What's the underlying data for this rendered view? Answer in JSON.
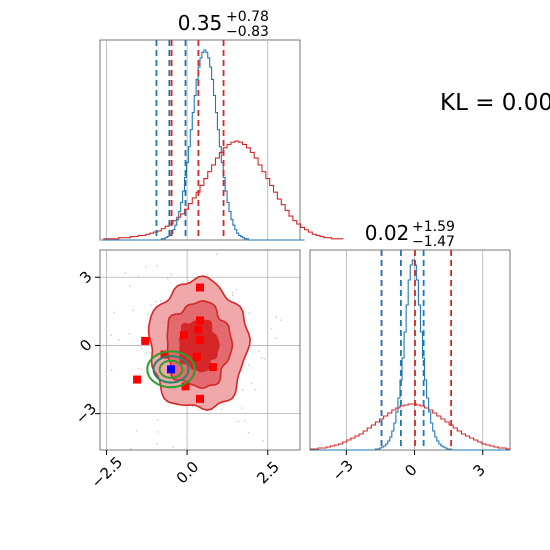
{
  "colors": {
    "posterior": "#d62728",
    "prior": "#1f77b4",
    "ellipse": "#2ca02c",
    "marker_red": "#ff0000",
    "marker_blue": "#0000ff",
    "grid": "#b0b0b0"
  },
  "kl_text": "KL = 0.00",
  "chart_data": [
    {
      "type": "histogram",
      "panel": "param1-marginal",
      "title": {
        "value": "0.35",
        "plus": "+0.78",
        "minus": "−0.83"
      },
      "xlim": [
        -2.7,
        3.5
      ],
      "posterior_quantiles": [
        -0.48,
        0.35,
        1.13
      ],
      "prior_quantiles": [
        -0.95,
        -0.55,
        -0.05
      ],
      "series": [
        {
          "color": "posterior",
          "bin_start": -2.6,
          "bin_width": 0.12,
          "counts": [
            1,
            1,
            1,
            1,
            2,
            2,
            2,
            3,
            3,
            4,
            4,
            5,
            6,
            7,
            8,
            10,
            12,
            14,
            17,
            20,
            23,
            27,
            32,
            37,
            42,
            48,
            54,
            60,
            66,
            72,
            77,
            81,
            84,
            86,
            87,
            86,
            84,
            81,
            77,
            72,
            66,
            60,
            54,
            48,
            42,
            36,
            31,
            26,
            21,
            17,
            14,
            11,
            9,
            7,
            5,
            4,
            3,
            2,
            2,
            1,
            1,
            1
          ]
        },
        {
          "color": "prior",
          "bin_start": -2.6,
          "bin_width": 0.06,
          "counts": [
            0,
            0,
            0,
            0,
            0,
            0,
            0,
            0,
            0,
            0,
            0,
            0,
            0,
            0,
            0,
            0,
            0,
            0,
            0,
            0,
            0,
            0,
            0,
            0,
            0,
            0,
            0,
            0,
            0,
            0,
            1,
            1,
            2,
            3,
            4,
            6,
            9,
            13,
            18,
            25,
            33,
            43,
            55,
            68,
            82,
            97,
            112,
            127,
            141,
            152,
            160,
            165,
            167,
            165,
            160,
            152,
            141,
            127,
            112,
            97,
            82,
            68,
            55,
            43,
            33,
            25,
            18,
            13,
            9,
            6,
            4,
            3,
            2,
            1,
            1,
            0,
            0,
            0,
            0,
            0,
            0,
            0,
            0,
            0,
            0,
            0,
            0,
            0,
            0,
            0,
            0,
            0,
            0,
            0,
            0,
            0,
            0,
            0,
            0,
            0,
            0,
            0,
            0,
            0
          ]
        }
      ]
    },
    {
      "type": "contour",
      "panel": "joint",
      "xlim": [
        -2.7,
        3.5
      ],
      "ylim": [
        -4.6,
        4.2
      ],
      "xticks": [
        "−2.5",
        "0.0",
        "2.5"
      ],
      "yticks": [
        "3",
        "0",
        "−3"
      ],
      "posterior_center": [
        0.35,
        0.02
      ],
      "posterior_sigma": [
        0.8,
        1.5
      ],
      "prior_center": [
        -0.5,
        -1.05
      ],
      "prior_sigma": [
        0.35,
        0.3
      ],
      "true_point": [
        -0.5,
        -1.05
      ],
      "markers": [
        [
          0.4,
          2.55
        ],
        [
          -1.3,
          0.2
        ],
        [
          -0.1,
          0.45
        ],
        [
          0.4,
          1.1
        ],
        [
          0.35,
          0.7
        ],
        [
          0.4,
          0.25
        ],
        [
          -0.7,
          -0.4
        ],
        [
          0.3,
          -0.5
        ],
        [
          0.8,
          -0.95
        ],
        [
          -1.55,
          -1.5
        ],
        [
          -0.05,
          -1.8
        ],
        [
          0.4,
          -2.35
        ]
      ]
    },
    {
      "type": "histogram",
      "panel": "param2-marginal",
      "title": {
        "value": "0.02",
        "plus": "+1.59",
        "minus": "−1.47"
      },
      "xlim": [
        -4.6,
        4.2
      ],
      "xticks": [
        "−3",
        "0",
        "3"
      ],
      "posterior_quantiles": [
        -1.45,
        0.02,
        1.61
      ],
      "prior_quantiles": [
        -1.45,
        -0.6,
        0.4
      ],
      "series": [
        {
          "color": "posterior",
          "bin_start": -4.6,
          "bin_width": 0.18,
          "counts": [
            1,
            1,
            2,
            2,
            3,
            4,
            5,
            6,
            8,
            10,
            12,
            14,
            16,
            19,
            22,
            25,
            28,
            31,
            34,
            37,
            40,
            42,
            44,
            45,
            46,
            46,
            45,
            44,
            42,
            40,
            37,
            34,
            31,
            28,
            25,
            22,
            19,
            16,
            14,
            12,
            10,
            8,
            6,
            5,
            4,
            3,
            2,
            2,
            1
          ]
        },
        {
          "color": "prior",
          "bin_start": -4.6,
          "bin_width": 0.09,
          "counts": [
            0,
            0,
            0,
            0,
            0,
            0,
            0,
            0,
            0,
            0,
            0,
            0,
            0,
            0,
            0,
            0,
            0,
            0,
            0,
            0,
            0,
            0,
            0,
            0,
            0,
            0,
            0,
            0,
            0,
            0,
            0,
            0,
            1,
            1,
            2,
            3,
            4,
            6,
            9,
            13,
            19,
            27,
            38,
            52,
            70,
            92,
            118,
            145,
            170,
            185,
            190,
            185,
            170,
            145,
            118,
            92,
            70,
            52,
            38,
            27,
            19,
            13,
            9,
            6,
            4,
            3,
            2,
            1,
            1,
            0,
            0,
            0,
            0,
            0,
            0,
            0,
            0,
            0,
            0,
            0,
            0,
            0,
            0,
            0,
            0,
            0,
            0,
            0,
            0,
            0,
            0,
            0,
            0,
            0,
            0,
            0,
            0,
            0
          ]
        }
      ]
    }
  ]
}
